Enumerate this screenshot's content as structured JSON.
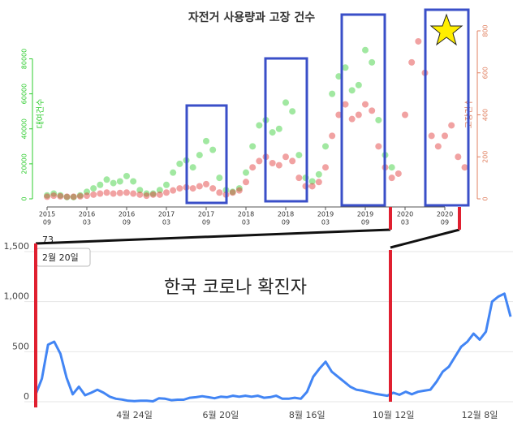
{
  "chart_data": [
    {
      "type": "scatter",
      "title": "자전거 사용량과 고장 건수",
      "ylabel": "대여건수",
      "y2label": "고장건수",
      "x": [
        "2015-09",
        "2015-10",
        "2015-11",
        "2015-12",
        "2016-01",
        "2016-02",
        "2016-03",
        "2016-04",
        "2016-05",
        "2016-06",
        "2016-07",
        "2016-08",
        "2016-09",
        "2016-10",
        "2016-11",
        "2016-12",
        "2017-01",
        "2017-02",
        "2017-03",
        "2017-04",
        "2017-05",
        "2017-06",
        "2017-07",
        "2017-08",
        "2017-09",
        "2017-10",
        "2017-11",
        "2017-12",
        "2018-01",
        "2018-02",
        "2018-03",
        "2018-04",
        "2018-05",
        "2018-06",
        "2018-07",
        "2018-08",
        "2018-09",
        "2018-10",
        "2018-11",
        "2018-12",
        "2019-01",
        "2019-02",
        "2019-03",
        "2019-04",
        "2019-05",
        "2019-06",
        "2019-07",
        "2019-08",
        "2019-09",
        "2019-10",
        "2019-11",
        "2019-12",
        "2020-01",
        "2020-02",
        "2020-03",
        "2020-04",
        "2020-05",
        "2020-06",
        "2020-07",
        "2020-08",
        "2020-09",
        "2020-10",
        "2020-11",
        "2020-12"
      ],
      "series": [
        {
          "name": "대여건수",
          "color": "#2ecc2e",
          "values": [
            2000,
            3000,
            2000,
            1000,
            1000,
            2000,
            4000,
            6000,
            8000,
            11000,
            9000,
            10000,
            13000,
            10000,
            5000,
            3000,
            3000,
            5000,
            8000,
            15000,
            20000,
            22000,
            18000,
            25000,
            33000,
            28000,
            12000,
            5000,
            4000,
            6000,
            15000,
            30000,
            42000,
            45000,
            38000,
            40000,
            55000,
            50000,
            25000,
            12000,
            10000,
            14000,
            30000,
            60000,
            70000,
            75000,
            62000,
            65000,
            85000,
            78000,
            45000,
            25000,
            18000,
            null,
            null,
            null,
            null,
            null,
            null,
            null,
            null,
            null,
            null,
            null
          ]
        },
        {
          "name": "고장건수",
          "color": "#e03030",
          "axis": "y2",
          "values": [
            10,
            15,
            12,
            10,
            10,
            12,
            15,
            20,
            25,
            30,
            25,
            28,
            30,
            25,
            20,
            15,
            20,
            20,
            30,
            40,
            50,
            55,
            50,
            60,
            70,
            50,
            30,
            20,
            30,
            40,
            80,
            150,
            180,
            200,
            170,
            160,
            200,
            180,
            100,
            60,
            60,
            80,
            150,
            300,
            400,
            450,
            380,
            400,
            450,
            420,
            250,
            150,
            100,
            120,
            400,
            650,
            750,
            600,
            300,
            250,
            300,
            350,
            200,
            150
          ]
        }
      ],
      "xticks": [
        {
          "value": "2015-09",
          "label": [
            "2015",
            "09"
          ]
        },
        {
          "value": "2016-03",
          "label": [
            "2016",
            "03"
          ]
        },
        {
          "value": "2016-09",
          "label": [
            "2016",
            "09"
          ]
        },
        {
          "value": "2017-03",
          "label": [
            "2017",
            "03"
          ]
        },
        {
          "value": "2017-09",
          "label": [
            "2017",
            "09"
          ]
        },
        {
          "value": "2018-03",
          "label": [
            "2018",
            "03"
          ]
        },
        {
          "value": "2018-09",
          "label": [
            "2018",
            "09"
          ]
        },
        {
          "value": "2019-03",
          "label": [
            "2019",
            "03"
          ]
        },
        {
          "value": "2019-09",
          "label": [
            "2019",
            "09"
          ]
        },
        {
          "value": "2020-03",
          "label": [
            "2020",
            "03"
          ]
        },
        {
          "value": "2020-09",
          "label": [
            "2020",
            "09"
          ]
        }
      ],
      "ylim": [
        0,
        96000
      ],
      "yticks": [
        0,
        20000,
        40000,
        60000,
        80000
      ],
      "y2lim": [
        0,
        800
      ],
      "y2ticks": [
        0,
        200,
        400,
        600,
        800
      ],
      "y2color": "#e08060"
    },
    {
      "type": "line",
      "annotation": "한국 코로나 확진자",
      "color": "#4285f4",
      "tooltip_index": 0,
      "categories": [
        "2월 20일",
        null,
        null,
        null,
        null,
        null,
        null,
        null,
        null,
        null,
        null,
        null,
        null,
        null,
        null,
        null,
        "4월 24일",
        null,
        null,
        null,
        null,
        null,
        null,
        null,
        null,
        null,
        null,
        null,
        null,
        null,
        "6월 20일",
        null,
        null,
        null,
        null,
        null,
        null,
        null,
        null,
        null,
        null,
        null,
        null,
        null,
        "8월 16일",
        null,
        null,
        null,
        null,
        null,
        null,
        null,
        null,
        null,
        null,
        null,
        null,
        null,
        "10월 12일",
        null,
        null,
        null,
        null,
        null,
        null,
        null,
        null,
        null,
        null,
        null,
        null,
        null,
        "12월 8일",
        null,
        null,
        null,
        null,
        null
      ],
      "values": [
        73,
        230,
        570,
        600,
        480,
        240,
        75,
        150,
        65,
        90,
        120,
        90,
        50,
        30,
        22,
        10,
        6,
        10,
        10,
        4,
        35,
        30,
        15,
        20,
        20,
        40,
        45,
        55,
        45,
        35,
        50,
        45,
        60,
        50,
        60,
        50,
        60,
        40,
        45,
        60,
        30,
        30,
        40,
        30,
        100,
        250,
        330,
        400,
        300,
        250,
        200,
        150,
        120,
        110,
        95,
        80,
        70,
        60,
        90,
        70,
        100,
        75,
        100,
        110,
        120,
        200,
        300,
        350,
        450,
        550,
        600,
        680,
        620,
        700,
        1000,
        1050,
        1080,
        850
      ],
      "ylim": [
        0,
        1500
      ],
      "yticks": [
        0,
        500,
        {
          "value": 1000,
          "label": "1,000"
        },
        {
          "value": 1500,
          "label": "1,500"
        }
      ],
      "grid": true
    }
  ]
}
